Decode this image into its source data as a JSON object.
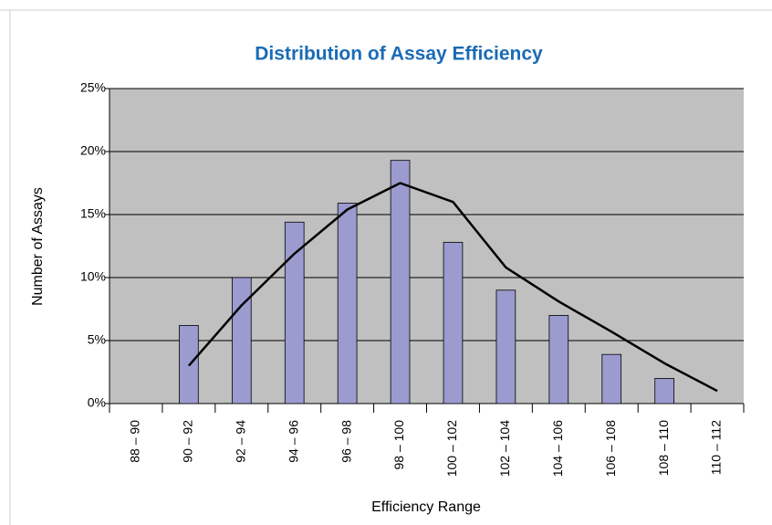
{
  "chart_data": {
    "type": "bar",
    "title": "Distribution of Assay Efficiency",
    "x_label": "Efficiency Range",
    "y_label": "Number of Assays",
    "categories": [
      "88 – 90",
      "90 – 92",
      "92 – 94",
      "94 – 96",
      "96 – 98",
      "98 – 100",
      "100 – 102",
      "102 – 104",
      "104 – 106",
      "106 – 108",
      "108 – 110",
      "110 – 112"
    ],
    "series": [
      {
        "type": "bar",
        "color": "#9b9bd0",
        "values": [
          null,
          6.2,
          10.0,
          14.4,
          15.9,
          19.3,
          12.8,
          9.0,
          7.0,
          3.9,
          2.0,
          null
        ]
      },
      {
        "type": "line",
        "color": "#000000",
        "values": [
          null,
          3.0,
          7.8,
          11.9,
          15.4,
          17.5,
          16.0,
          10.8,
          8.1,
          5.7,
          3.2,
          1.0
        ]
      }
    ],
    "ylim": [
      0,
      25
    ],
    "yticks": [
      {
        "value": 0,
        "label": "0%"
      },
      {
        "value": 5,
        "label": "5%"
      },
      {
        "value": 10,
        "label": "10%"
      },
      {
        "value": 15,
        "label": "15%"
      },
      {
        "value": 20,
        "label": "20%"
      },
      {
        "value": 25,
        "label": "25%"
      }
    ],
    "grid": true
  }
}
